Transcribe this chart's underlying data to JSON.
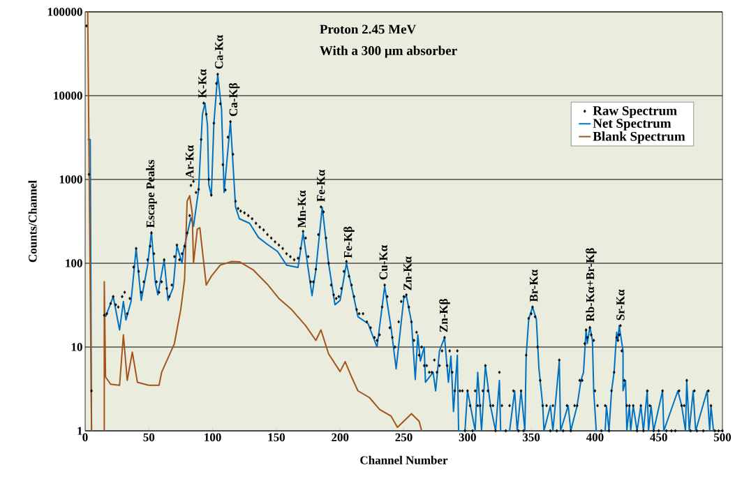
{
  "chart_data": {
    "type": "line",
    "title": "Proton 2.45 MeV",
    "subtitle": "With a 300 μm absorber",
    "xlabel": "Channel Number",
    "ylabel": "Counts/Channel",
    "xlim": [
      0,
      500
    ],
    "xticks": [
      0,
      50,
      100,
      150,
      200,
      250,
      300,
      350,
      400,
      450,
      500
    ],
    "ylim": [
      1,
      100000
    ],
    "yticks": [
      1,
      10,
      100,
      1000,
      10000,
      100000
    ],
    "log": "y",
    "grid": "y",
    "legend": "top right",
    "series": [
      {
        "name": "Raw Spectrum",
        "type": "scatter",
        "marker": "diamond",
        "color": "#000000",
        "x": [
          1,
          3,
          5,
          15,
          17,
          20,
          22,
          24,
          26,
          29,
          31,
          33,
          35,
          38,
          40,
          42,
          44,
          46,
          49,
          51,
          52,
          54,
          56,
          58,
          60,
          62,
          64,
          66,
          68,
          70,
          72,
          74,
          76,
          78,
          80,
          82,
          83,
          85,
          87,
          89,
          91,
          93,
          95,
          97,
          99,
          101,
          103,
          104,
          106,
          108,
          110,
          112,
          114,
          116,
          118,
          120,
          122,
          125,
          128,
          131,
          134,
          137,
          140,
          143,
          146,
          149,
          152,
          155,
          158,
          161,
          164,
          167,
          169,
          171,
          173,
          175,
          177,
          179,
          181,
          183,
          185,
          187,
          189,
          191,
          193,
          195,
          197,
          199,
          201,
          203,
          205,
          207,
          209,
          211,
          213,
          215,
          218,
          221,
          224,
          227,
          229,
          231,
          233,
          235,
          237,
          239,
          241,
          243,
          246,
          248,
          250,
          252,
          254,
          256,
          258,
          260,
          262,
          264,
          266,
          268,
          270,
          272,
          274,
          276,
          278,
          280,
          282,
          284,
          286,
          288,
          290,
          292,
          294,
          296,
          298,
          300,
          302,
          304,
          306,
          308,
          310,
          312,
          314,
          316,
          318,
          320,
          322,
          325,
          327,
          330,
          333,
          336,
          340,
          342,
          344,
          346,
          348,
          350,
          351,
          353,
          355,
          357,
          359,
          362,
          365,
          367,
          370,
          372,
          375,
          378,
          381,
          384,
          386,
          388,
          390,
          392,
          393,
          394,
          396,
          397,
          399,
          400,
          402,
          405,
          408,
          411,
          413,
          415,
          417,
          418,
          419,
          420,
          421,
          423,
          425,
          427,
          430,
          433,
          436,
          438,
          441,
          443,
          446,
          450,
          453,
          456,
          460,
          463,
          466,
          468,
          470,
          472,
          475,
          478,
          480,
          485,
          489,
          491,
          494,
          497,
          500
        ],
        "values": [
          68000,
          1150,
          3,
          24,
          25,
          33,
          40,
          32,
          30,
          40,
          45,
          25,
          38,
          90,
          150,
          80,
          45,
          60,
          110,
          160,
          230,
          130,
          60,
          45,
          60,
          110,
          50,
          40,
          55,
          120,
          165,
          110,
          130,
          160,
          230,
          370,
          850,
          950,
          700,
          760,
          3000,
          8150,
          6000,
          1000,
          650,
          4700,
          14000,
          18000,
          8000,
          1500,
          750,
          3200,
          4900,
          2000,
          550,
          450,
          420,
          400,
          370,
          340,
          300,
          270,
          250,
          220,
          200,
          180,
          165,
          150,
          130,
          120,
          110,
          115,
          150,
          240,
          200,
          120,
          60,
          60,
          85,
          220,
          470,
          410,
          200,
          100,
          55,
          42,
          38,
          40,
          50,
          80,
          105,
          70,
          55,
          40,
          28,
          25,
          25,
          20,
          17,
          13,
          12,
          14,
          30,
          55,
          40,
          17,
          13,
          10,
          20,
          35,
          40,
          42,
          30,
          20,
          12,
          15,
          8,
          10,
          6,
          6,
          5,
          5,
          7,
          5,
          6,
          9,
          13,
          6,
          9,
          5,
          3,
          9,
          3,
          3,
          1,
          3,
          2,
          1,
          3,
          2,
          2,
          3,
          6,
          3,
          2,
          2,
          1,
          5,
          2,
          1,
          2,
          3,
          1,
          3,
          1,
          8,
          22,
          25,
          30,
          23,
          10,
          4,
          2,
          2,
          1,
          2,
          1,
          7,
          1,
          2,
          1,
          2,
          2,
          4,
          4,
          11,
          16,
          13,
          17,
          14,
          12,
          3,
          2,
          1,
          2,
          1,
          3,
          5,
          13,
          12,
          14,
          18,
          9,
          4,
          2,
          2,
          2,
          1,
          2,
          1,
          3,
          2,
          1,
          1,
          3,
          1,
          1,
          1,
          3,
          2,
          2,
          4,
          1,
          3,
          1,
          1,
          3,
          2,
          1,
          1,
          1
        ]
      },
      {
        "name": "Net Spectrum",
        "color": "#0070c0",
        "x": [
          2,
          4,
          5,
          10,
          16,
          22,
          27,
          30,
          32,
          36,
          40,
          44,
          49,
          52,
          55,
          57,
          62,
          65,
          69,
          72,
          76,
          77,
          80,
          83,
          85,
          89,
          92,
          94,
          96,
          97,
          99,
          101,
          104,
          107,
          109,
          114,
          118,
          121,
          129,
          136,
          143,
          151,
          158,
          167,
          171,
          178,
          181,
          186,
          191,
          196,
          200,
          205,
          211,
          214,
          222,
          229,
          235,
          240,
          244,
          250,
          252,
          256,
          259,
          261,
          263,
          266,
          267,
          273,
          275,
          278,
          282,
          285,
          287,
          289,
          292,
          293,
          298,
          300,
          306,
          308,
          311,
          314,
          318,
          322,
          325,
          326,
          333,
          337,
          339,
          342,
          345,
          346,
          348,
          351,
          354,
          356,
          359,
          360,
          365,
          367,
          372,
          373,
          379,
          381,
          386,
          389,
          391,
          393,
          394,
          396,
          398,
          399,
          401,
          408,
          409,
          411,
          413,
          415,
          417,
          418,
          419,
          422,
          422,
          424,
          425,
          427,
          428,
          430,
          433,
          436,
          438,
          441,
          442,
          444,
          446,
          453,
          454,
          465,
          468,
          471,
          472,
          474,
          477,
          479,
          488,
          490,
          491,
          493
        ],
        "values": [
          3000,
          3000,
          1,
          null,
          23,
          40,
          16,
          35,
          21,
          35,
          150,
          36,
          95,
          237,
          60,
          42,
          110,
          36,
          51,
          162,
          100,
          138,
          220,
          350,
          275,
          750,
          5960,
          8150,
          4400,
          870,
          640,
          4700,
          18000,
          6900,
          700,
          4900,
          470,
          340,
          300,
          203,
          168,
          138,
          95,
          89,
          230,
          41,
          83,
          465,
          100,
          32,
          36,
          100,
          38,
          23,
          19,
          10,
          53,
          17,
          5.5,
          38,
          41,
          20,
          4.1,
          14,
          6.8,
          10,
          3.8,
          5,
          3,
          9,
          13,
          3.8,
          7.8,
          1.7,
          8,
          1,
          1,
          3,
          1,
          5,
          1,
          6,
          2,
          1,
          4,
          1,
          1,
          3,
          1,
          3,
          1,
          7.8,
          21.5,
          30,
          21.5,
          5.6,
          2,
          1,
          2,
          1,
          6.8,
          1,
          2,
          1,
          2,
          4,
          5,
          16,
          11,
          17.5,
          12,
          3,
          1,
          1,
          2,
          1,
          3,
          5,
          15,
          12,
          18,
          9,
          3,
          4,
          1,
          2,
          1,
          2,
          1,
          2,
          1,
          3,
          1,
          2,
          1,
          3,
          1,
          3,
          2,
          1,
          4,
          1,
          3,
          1,
          3,
          1,
          2,
          1
        ]
      },
      {
        "name": "Blank Spectrum",
        "color": "#a5521b",
        "x": [
          0,
          2,
          5,
          10,
          15,
          15,
          16,
          20,
          27,
          30,
          33,
          37,
          41,
          50,
          58,
          60,
          66,
          70,
          75,
          78,
          80,
          82,
          84,
          85,
          88,
          90,
          92,
          95,
          99,
          106,
          115,
          121,
          132,
          143,
          152,
          162,
          173,
          181,
          185,
          191,
          200,
          204,
          209,
          214,
          223,
          231,
          240,
          245,
          256,
          262,
          264
        ],
        "values": [
          100000,
          100000,
          1,
          null,
          1,
          60,
          4.4,
          3.6,
          3.5,
          14,
          4,
          8.7,
          3.8,
          3.5,
          3.5,
          5,
          8,
          11,
          28,
          64,
          550,
          640,
          400,
          100,
          255,
          265,
          140,
          55,
          70,
          95,
          105,
          104,
          83,
          56,
          38,
          28,
          18,
          12,
          16,
          8.3,
          5.1,
          6.7,
          4.4,
          3,
          2.5,
          1.8,
          1.5,
          1.1,
          1.6,
          1.3,
          1
        ]
      }
    ],
    "annotations": [
      {
        "text": "Escape Peaks",
        "x": 52,
        "y": 230
      },
      {
        "text": "Ar-Kα",
        "x": 82,
        "y": 900
      },
      {
        "text": "K-Kα",
        "x": 92,
        "y": 8150
      },
      {
        "text": "Ca-Kα",
        "x": 105,
        "y": 18000
      },
      {
        "text": "Ca-Kβ",
        "x": 117,
        "y": 4900
      },
      {
        "text": "Mn-Kα",
        "x": 170,
        "y": 230
      },
      {
        "text": "Fe-Kα",
        "x": 185,
        "y": 470
      },
      {
        "text": "Fe-Kβ",
        "x": 207,
        "y": 100
      },
      {
        "text": "Cu-Kα",
        "x": 234,
        "y": 55
      },
      {
        "text": "Zn-Kα",
        "x": 253,
        "y": 41
      },
      {
        "text": "Zn-Kβ",
        "x": 282,
        "y": 13
      },
      {
        "text": "Br-Kα",
        "x": 352,
        "y": 30
      },
      {
        "text": "Rb-Kα+Br-Kβ",
        "x": 397,
        "y": 17.5
      },
      {
        "text": "Sr-Kα",
        "x": 420,
        "y": 18
      }
    ]
  }
}
